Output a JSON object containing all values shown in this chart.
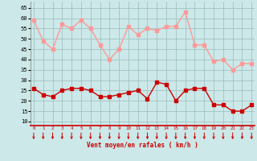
{
  "hours": [
    0,
    1,
    2,
    3,
    4,
    5,
    6,
    7,
    8,
    9,
    10,
    11,
    12,
    13,
    14,
    15,
    16,
    17,
    18,
    19,
    20,
    21,
    22,
    23
  ],
  "avg_wind": [
    26,
    23,
    22,
    25,
    26,
    26,
    25,
    22,
    22,
    23,
    24,
    25,
    21,
    29,
    28,
    20,
    25,
    26,
    26,
    18,
    18,
    15,
    15,
    18
  ],
  "gust_wind": [
    59,
    49,
    45,
    57,
    55,
    59,
    55,
    47,
    40,
    45,
    56,
    52,
    55,
    54,
    56,
    56,
    63,
    47,
    47,
    39,
    40,
    35,
    38,
    38
  ],
  "avg_color": "#cc0000",
  "gust_color": "#ff9999",
  "bg_color": "#cce8e8",
  "grid_color": "#99bbbb",
  "xlabel": "Vent moyen/en rafales ( km/h )",
  "xlabel_color": "#cc0000",
  "ylabel_ticks": [
    10,
    15,
    20,
    25,
    30,
    35,
    40,
    45,
    50,
    55,
    60,
    65
  ],
  "ylim": [
    8,
    68
  ],
  "xlim": [
    -0.3,
    23.3
  ],
  "marker_size": 2.5,
  "line_width": 1.0,
  "arrow_color": "#cc0000"
}
